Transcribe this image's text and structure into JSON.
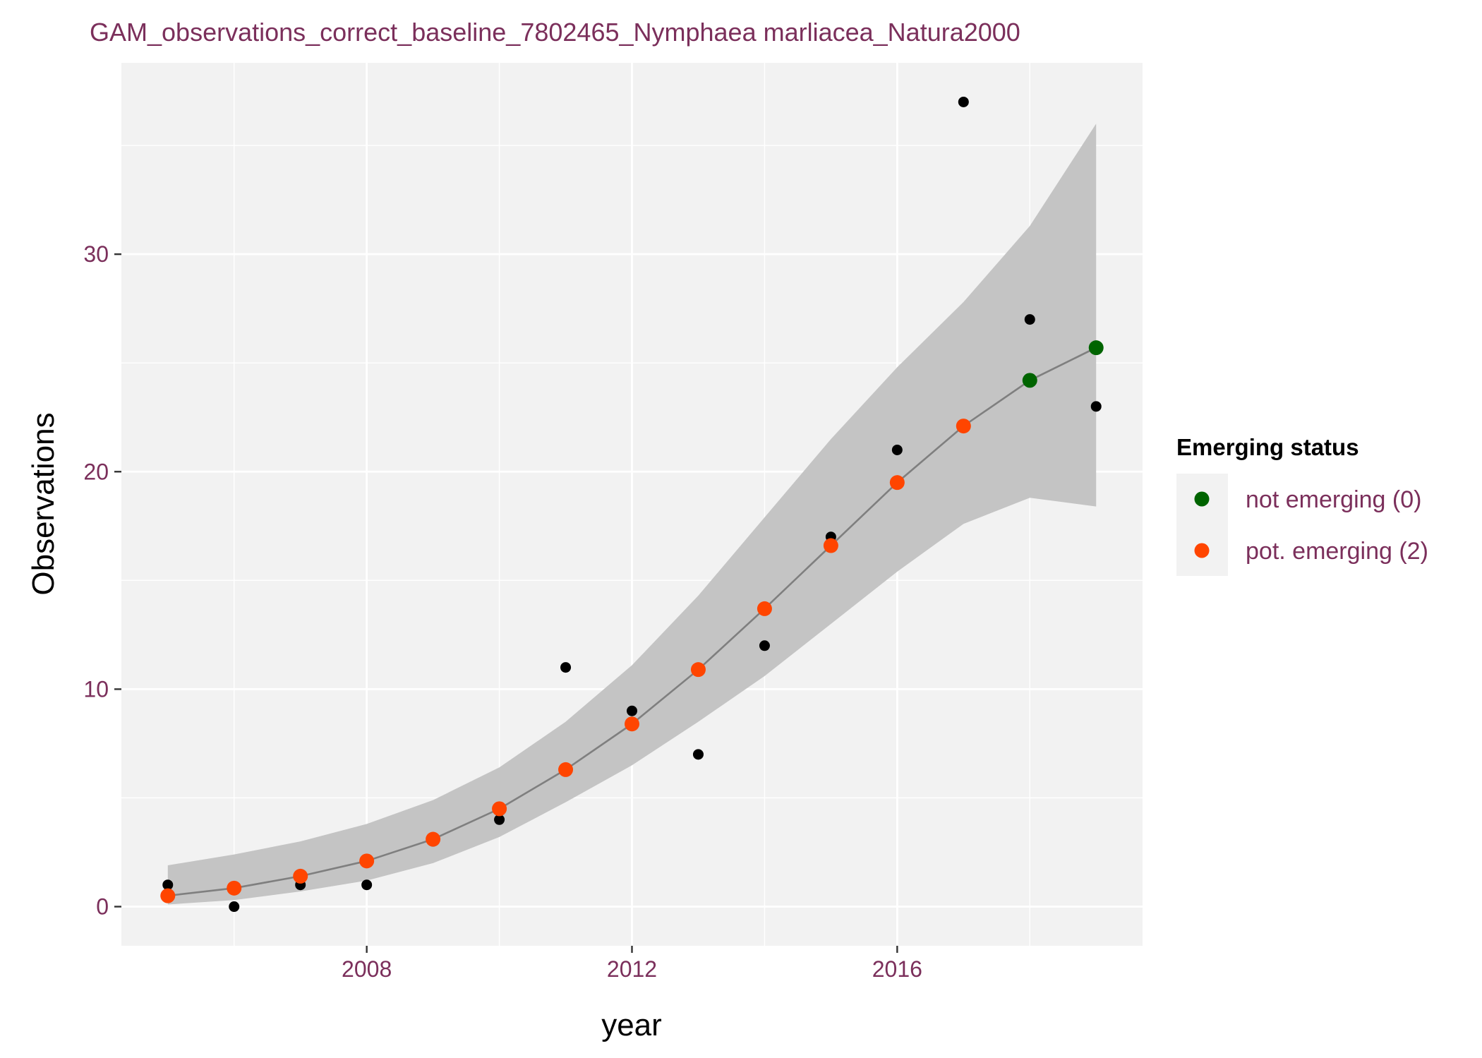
{
  "chart_data": {
    "type": "scatter",
    "title": "GAM_observations_correct_baseline_7802465_Nymphaea marliacea_Natura2000",
    "xlabel": "year",
    "ylabel": "Observations",
    "xlim": [
      2004.3,
      2019.7
    ],
    "ylim": [
      -1.8,
      38.8
    ],
    "x_ticks": [
      2008,
      2012,
      2016
    ],
    "x_tick_labels": [
      "2008",
      "2012",
      "2016"
    ],
    "y_ticks": [
      0,
      10,
      20,
      30
    ],
    "y_tick_labels": [
      "0",
      "10",
      "20",
      "30"
    ],
    "grid": true,
    "observed": {
      "x": [
        2005,
        2006,
        2007,
        2008,
        2009,
        2010,
        2011,
        2012,
        2013,
        2014,
        2015,
        2016,
        2017,
        2018,
        2019
      ],
      "y": [
        1,
        0,
        1,
        1,
        3,
        4,
        11,
        9,
        7,
        12,
        17,
        21,
        37,
        27,
        23
      ]
    },
    "fit": {
      "x": [
        2005,
        2006,
        2007,
        2008,
        2009,
        2010,
        2011,
        2012,
        2013,
        2014,
        2015,
        2016,
        2017,
        2018,
        2019
      ],
      "y": [
        0.5,
        0.85,
        1.4,
        2.1,
        3.1,
        4.5,
        6.3,
        8.4,
        10.9,
        13.7,
        16.6,
        19.5,
        22.1,
        24.2,
        25.7
      ],
      "lower": [
        0.1,
        0.3,
        0.7,
        1.2,
        2.0,
        3.2,
        4.8,
        6.5,
        8.5,
        10.6,
        13.0,
        15.4,
        17.6,
        18.8,
        18.4
      ],
      "upper": [
        1.9,
        2.4,
        3.0,
        3.8,
        4.9,
        6.4,
        8.5,
        11.1,
        14.3,
        17.9,
        21.5,
        24.8,
        27.8,
        31.3,
        36.0
      ],
      "status": [
        "pot. emerging (2)",
        "pot. emerging (2)",
        "pot. emerging (2)",
        "pot. emerging (2)",
        "pot. emerging (2)",
        "pot. emerging (2)",
        "pot. emerging (2)",
        "pot. emerging (2)",
        "pot. emerging (2)",
        "pot. emerging (2)",
        "pot. emerging (2)",
        "pot. emerging (2)",
        "pot. emerging (2)",
        "not emerging (0)",
        "not emerging (0)"
      ]
    },
    "legend": {
      "title": "Emerging status",
      "placement": "right",
      "entries": [
        {
          "label": "not emerging (0)",
          "color": "#006400"
        },
        {
          "label": "pot. emerging (2)",
          "color": "#FF4500"
        }
      ]
    },
    "colors": {
      "panel": "#F2F2F2",
      "grid": "#FFFFFF",
      "ribbon": "#C4C4C4",
      "fit_line": "#7F7F7F",
      "observed_point": "#000000",
      "label_text": "#7B2F5B",
      "tick": "#333333"
    }
  }
}
